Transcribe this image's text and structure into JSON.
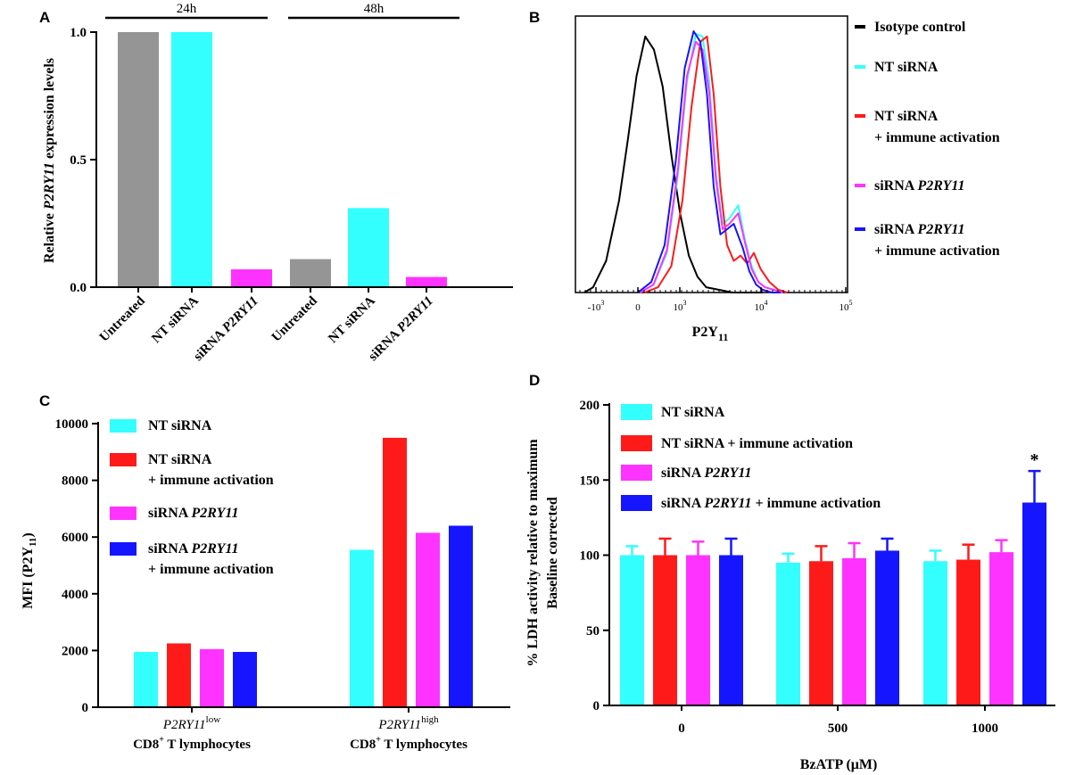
{
  "figure": {
    "colors": {
      "gray": "#959595",
      "cyan": "#33ffff",
      "red": "#ff1a1a",
      "magenta": "#ff33ff",
      "blue": "#1515ff",
      "black": "#000000"
    }
  },
  "chart_data": [
    {
      "panel": "A",
      "type": "bar",
      "ylabel_pre": "Relative ",
      "ylabel_gene": "P2RY11",
      "ylabel_post": " expression levels",
      "ylim": [
        0,
        1.0
      ],
      "yticks": [
        0.0,
        0.5,
        1.0
      ],
      "ytick_labels": [
        "0.0",
        "0.5",
        "1.0"
      ],
      "groups": [
        {
          "label": "24h"
        },
        {
          "label": "48h"
        }
      ],
      "bars": [
        {
          "group": 0,
          "label": "Untreated",
          "gene": "",
          "value": 1.0,
          "color": "gray"
        },
        {
          "group": 0,
          "label": "NT siRNA",
          "gene": "",
          "value": 1.0,
          "color": "cyan"
        },
        {
          "group": 0,
          "label": "siRNA ",
          "gene": "P2RY11",
          "value": 0.07,
          "color": "magenta"
        },
        {
          "group": 1,
          "label": "Untreated",
          "gene": "",
          "value": 0.11,
          "color": "gray"
        },
        {
          "group": 1,
          "label": "NT siRNA",
          "gene": "",
          "value": 0.31,
          "color": "cyan"
        },
        {
          "group": 1,
          "label": "siRNA ",
          "gene": "P2RY11",
          "value": 0.04,
          "color": "magenta"
        }
      ]
    },
    {
      "panel": "B",
      "type": "line",
      "xlabel": "P2Y",
      "xlabel_sub": "11",
      "xticks": [
        {
          "base": "-10",
          "exp": "3"
        },
        {
          "base": "0",
          "exp": ""
        },
        {
          "base": "10",
          "exp": "3"
        },
        {
          "base": "10",
          "exp": "4"
        },
        {
          "base": "10",
          "exp": "5"
        }
      ],
      "series": [
        {
          "name": "Isotype control",
          "name2": "",
          "gene": "",
          "color": "black",
          "x": [
            -1.1,
            -0.9,
            -0.6,
            -0.3,
            -0.1,
            0.1,
            0.3,
            0.5,
            0.7,
            0.9,
            1.1,
            1.3,
            1.5,
            1.7,
            2.0,
            2.3,
            2.6,
            3.0
          ],
          "y": [
            0,
            2,
            12,
            35,
            58,
            82,
            97,
            92,
            78,
            52,
            30,
            14,
            6,
            2,
            1,
            0,
            0,
            0
          ]
        },
        {
          "name": "NT siRNA",
          "name2": "",
          "gene": "",
          "color": "cyan",
          "x": [
            0.5,
            0.8,
            1.1,
            1.35,
            1.55,
            1.75,
            1.9,
            2.05,
            2.2,
            2.35,
            2.5,
            2.7,
            2.85,
            3.0,
            3.15,
            3.3,
            3.5,
            3.7
          ],
          "y": [
            0,
            3,
            15,
            45,
            80,
            98,
            97,
            80,
            45,
            26,
            28,
            33,
            20,
            10,
            4,
            2,
            1,
            0
          ]
        },
        {
          "name": "NT siRNA",
          "name2": "+ immune activation",
          "gene": "",
          "color": "red",
          "x": [
            0.6,
            0.9,
            1.2,
            1.45,
            1.65,
            1.85,
            2.0,
            2.15,
            2.3,
            2.45,
            2.6,
            2.75,
            2.9,
            3.05,
            3.2,
            3.4,
            3.6,
            3.8
          ],
          "y": [
            0,
            2,
            10,
            35,
            70,
            95,
            97,
            75,
            40,
            18,
            12,
            14,
            11,
            15,
            9,
            4,
            1,
            0
          ]
        },
        {
          "name": "siRNA ",
          "name2": "",
          "gene": "P2RY11",
          "color": "magenta",
          "x": [
            0.5,
            0.8,
            1.1,
            1.35,
            1.55,
            1.75,
            1.9,
            2.05,
            2.2,
            2.35,
            2.5,
            2.7,
            2.85,
            3.0,
            3.15,
            3.3,
            3.5,
            3.7
          ],
          "y": [
            0,
            3,
            16,
            47,
            82,
            95,
            92,
            76,
            43,
            24,
            26,
            30,
            19,
            9,
            4,
            2,
            1,
            0
          ]
        },
        {
          "name": "siRNA ",
          "name2": "+ immune  activation",
          "gene": "P2RY11",
          "color": "blue",
          "x": [
            0.45,
            0.75,
            1.05,
            1.3,
            1.5,
            1.7,
            1.85,
            2.0,
            2.15,
            2.3,
            2.45,
            2.6,
            2.8,
            2.95,
            3.1,
            3.25,
            3.45,
            3.65
          ],
          "y": [
            0,
            4,
            18,
            50,
            85,
            99,
            95,
            75,
            40,
            22,
            24,
            26,
            17,
            8,
            3,
            1,
            0,
            0
          ]
        }
      ]
    },
    {
      "panel": "C",
      "type": "bar",
      "ylabel": "MFI (P2Y",
      "ylabel_sub": "11",
      "ylabel_end": ")",
      "ylim": [
        0,
        10000
      ],
      "yticks": [
        0,
        2000,
        4000,
        6000,
        8000,
        10000
      ],
      "ytick_labels": [
        "0",
        "2000",
        "4000",
        "6000",
        "8000",
        "10000"
      ],
      "categories": [
        {
          "gene": "P2RY11",
          "sup": "low",
          "line2": "CD8",
          "line2_sup": "+",
          "line2_rest": " T lymphocytes"
        },
        {
          "gene": "P2RY11",
          "sup": "high",
          "line2": "CD8",
          "line2_sup": "+",
          "line2_rest": " T lymphocytes"
        }
      ],
      "series": [
        {
          "name": "NT siRNA",
          "name2": "",
          "gene": "",
          "color": "cyan",
          "values": [
            1950,
            5550
          ]
        },
        {
          "name": "NT siRNA",
          "name2": "+ immune activation",
          "gene": "",
          "color": "red",
          "values": [
            2250,
            9500
          ]
        },
        {
          "name": "siRNA ",
          "name2": "",
          "gene": "P2RY11",
          "color": "magenta",
          "values": [
            2050,
            6150
          ]
        },
        {
          "name": "siRNA ",
          "name2": "+ immune activation",
          "gene": "P2RY11",
          "color": "blue",
          "values": [
            1950,
            6400
          ]
        }
      ]
    },
    {
      "panel": "D",
      "type": "bar",
      "ylabel": "% LDH activity relative to maximum",
      "ylabel2": "Baseline corrected",
      "xlabel": "BzATP (μM)",
      "ylim": [
        0,
        200
      ],
      "yticks": [
        0,
        50,
        100,
        150,
        200
      ],
      "ytick_labels": [
        "0",
        "50",
        "100",
        "150",
        "200"
      ],
      "categories": [
        "0",
        "500",
        "1000"
      ],
      "series": [
        {
          "name": "NT siRNA",
          "name_rest": "",
          "gene": "",
          "color": "cyan",
          "values": [
            100,
            95,
            96
          ],
          "errors": [
            6,
            6,
            7
          ]
        },
        {
          "name": "NT siRNA + immune activation",
          "name_rest": "",
          "gene": "",
          "color": "red",
          "values": [
            100,
            96,
            97
          ],
          "errors": [
            11,
            10,
            10
          ]
        },
        {
          "name": "siRNA ",
          "name_rest": "",
          "gene": "P2RY11",
          "color": "magenta",
          "values": [
            100,
            98,
            102
          ],
          "errors": [
            9,
            10,
            8
          ]
        },
        {
          "name": "siRNA ",
          "name_rest": " + immune activation",
          "gene": "P2RY11",
          "color": "blue",
          "values": [
            100,
            103,
            135
          ],
          "errors": [
            11,
            8,
            21
          ]
        }
      ],
      "annotation": "*"
    }
  ]
}
